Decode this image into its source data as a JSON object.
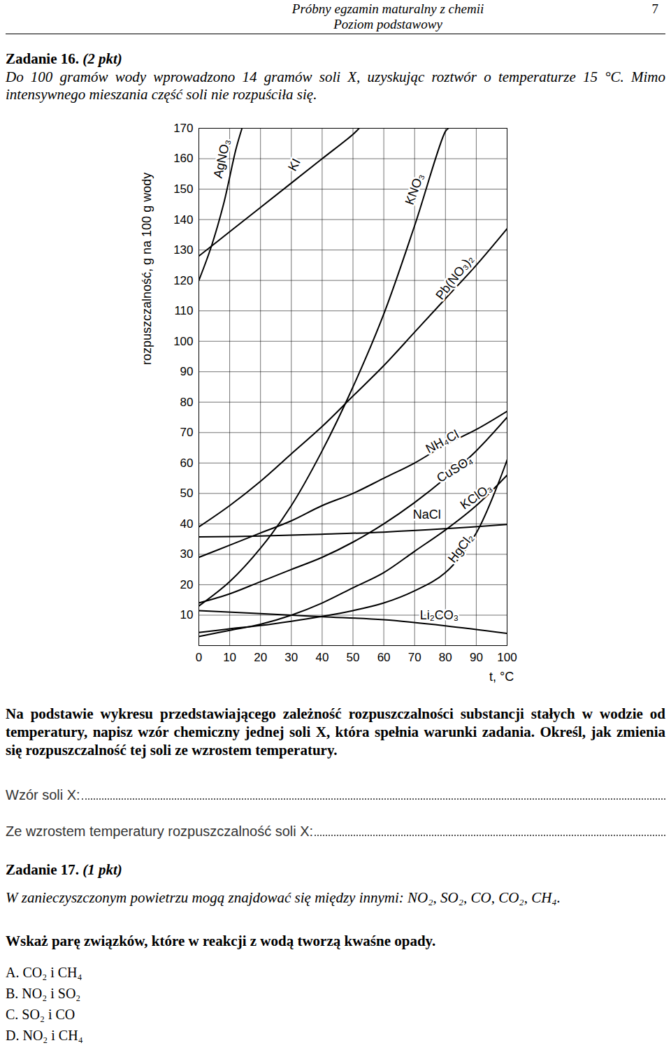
{
  "header": {
    "title": "Próbny egzamin maturalny z chemii",
    "subtitle": "Poziom podstawowy",
    "page": 7
  },
  "task16": {
    "title": "Zadanie 16.",
    "points": "(2 pkt)",
    "intro": "Do 100 gramów wody wprowadzono 14 gramów soli X, uzyskując roztwór o temperaturze 15 °C. Mimo intensywnego mieszania część soli nie rozpuściła się.",
    "instruction": "Na podstawie wykresu przedstawiającego zależność rozpuszczalności substancji stałych w wodzie od temperatury, napisz wzór chemiczny jednej soli X, która spełnia warunki zadania. Określ, jak zmienia się rozpuszczalność tej soli ze wzrostem temperatury.",
    "answers": [
      "Wzór soli X:",
      "Ze wzrostem temperatury rozpuszczalność soli X:"
    ]
  },
  "chart_data": {
    "type": "line",
    "x_label": "t, °C",
    "y_label": "rozpuszczalność, g na 100 g wody",
    "xlim": [
      0,
      100
    ],
    "ylim": [
      0,
      170
    ],
    "xticks": [
      0,
      10,
      20,
      30,
      40,
      50,
      60,
      70,
      80,
      90,
      100
    ],
    "yticks": [
      10,
      20,
      30,
      40,
      50,
      60,
      70,
      80,
      90,
      100,
      110,
      120,
      130,
      140,
      150,
      160,
      170
    ],
    "grid": true,
    "color": "#000000",
    "series": [
      {
        "name": "AgNO₃",
        "x": [
          0,
          4,
          8,
          12,
          14
        ],
        "values": [
          120,
          131,
          145,
          163,
          170
        ]
      },
      {
        "name": "KI",
        "x": [
          0,
          10,
          20,
          30,
          40,
          50,
          52
        ],
        "values": [
          128,
          136,
          144,
          152,
          160,
          168,
          170
        ]
      },
      {
        "name": "KNO₃",
        "x": [
          0,
          10,
          20,
          30,
          40,
          50,
          60,
          70,
          80,
          81
        ],
        "values": [
          13,
          21,
          32,
          46,
          64,
          85,
          109,
          138,
          169,
          170
        ]
      },
      {
        "name": "Pb(NO₃)₂",
        "x": [
          0,
          10,
          20,
          30,
          40,
          50,
          60,
          70,
          80,
          90,
          100
        ],
        "values": [
          39,
          46,
          54,
          63,
          72,
          82,
          92,
          103,
          114,
          125,
          137
        ]
      },
      {
        "name": "NH₄Cl",
        "x": [
          0,
          10,
          20,
          30,
          40,
          50,
          60,
          70,
          80,
          90,
          100
        ],
        "values": [
          29,
          33,
          37,
          41,
          46,
          50,
          55,
          60,
          66,
          71,
          77
        ]
      },
      {
        "name": "CuSO₄",
        "x": [
          0,
          10,
          20,
          30,
          40,
          50,
          60,
          70,
          80,
          90,
          100
        ],
        "values": [
          14,
          17,
          21,
          25,
          29,
          34,
          40,
          47,
          55,
          64,
          75
        ]
      },
      {
        "name": "KClO₃",
        "x": [
          0,
          10,
          20,
          30,
          40,
          50,
          60,
          70,
          80,
          90,
          100
        ],
        "values": [
          3,
          5,
          7,
          10,
          14,
          19,
          24,
          31,
          38,
          46,
          56
        ]
      },
      {
        "name": "NaCl",
        "x": [
          0,
          20,
          40,
          60,
          80,
          100
        ],
        "values": [
          35.7,
          36,
          36.6,
          37.3,
          38.4,
          39.8
        ]
      },
      {
        "name": "HgCl₂",
        "x": [
          0,
          10,
          20,
          30,
          40,
          50,
          60,
          70,
          80,
          90,
          100
        ],
        "values": [
          4.3,
          5.5,
          6.6,
          8,
          9.6,
          11.5,
          14,
          18,
          24,
          37,
          61
        ]
      },
      {
        "name": "Li₂CO₃",
        "x": [
          0,
          20,
          40,
          60,
          80,
          100
        ],
        "values": [
          11.5,
          10.5,
          9.5,
          8.5,
          6.5,
          4
        ]
      }
    ]
  },
  "task17": {
    "title": "Zadanie 17.",
    "points": "(1 pkt)",
    "intro": "W zanieczyszczonym powietrzu mogą znajdować się między innymi: NO₂, SO₂, CO, CO₂, CH₄.",
    "question": "Wskaż parę związków, które w reakcji z wodą tworzą kwaśne opady.",
    "options": [
      {
        "letter": "A.",
        "text": "CO₂ i CH₄"
      },
      {
        "letter": "B.",
        "text": "NO₂ i SO₂"
      },
      {
        "letter": "C.",
        "text": "SO₂ i CO"
      },
      {
        "letter": "D.",
        "text": "NO₂ i CH₄"
      }
    ]
  }
}
